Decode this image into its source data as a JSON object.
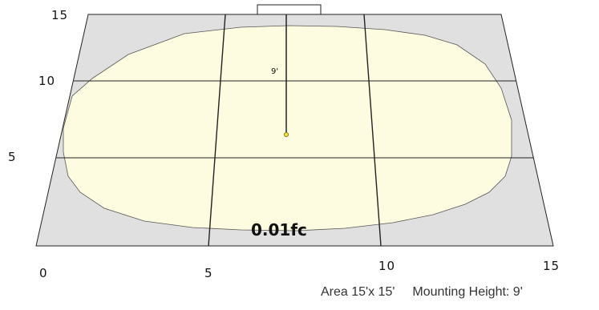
{
  "grid": {
    "x_ticks": [
      "0",
      "5",
      "10",
      "15"
    ],
    "y_ticks": [
      "5",
      "10",
      "15"
    ]
  },
  "illuminance_label": "0.01fc",
  "mounting_dimension_label": "9'",
  "footer": {
    "area": "Area 15'x 15'",
    "mounting_height": "Mounting Height: 9'"
  },
  "colors": {
    "floor": "#e0e0e0",
    "light_pool": "#fdfce0",
    "fixture": "#f0e040",
    "lines": "#222222"
  }
}
